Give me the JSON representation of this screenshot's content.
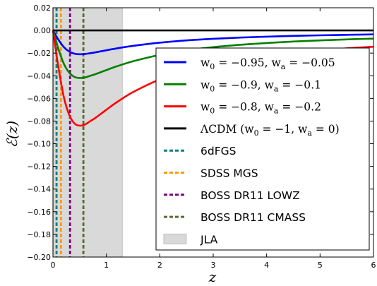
{
  "chart_data": {
    "type": "line",
    "xlabel": "z",
    "ylabel": "ℰ(z)",
    "xlim": [
      0,
      6
    ],
    "ylim": [
      -0.2,
      0.02
    ],
    "xticks": [
      0,
      1,
      2,
      3,
      4,
      5,
      6
    ],
    "xtick_labels": [
      "0",
      "1",
      "2",
      "3",
      "4",
      "5",
      "6"
    ],
    "yticks": [
      0.02,
      0.0,
      -0.02,
      -0.04,
      -0.06,
      -0.08,
      -0.1,
      -0.12,
      -0.14,
      -0.16,
      -0.18,
      -0.2
    ],
    "ytick_labels": [
      "0.02",
      "0.00",
      "−0.02",
      "−0.04",
      "−0.06",
      "−0.08",
      "−0.10",
      "−0.12",
      "−0.14",
      "−0.16",
      "−0.18",
      "−0.20"
    ],
    "grid": false,
    "legend_position": "right",
    "series": [
      {
        "key": "s1",
        "name_parts": [
          "w",
          "0",
          " = −0.95,  w",
          "a",
          " = −0.05"
        ],
        "color": "#0000ff",
        "x": [
          0,
          0.05,
          0.1,
          0.2,
          0.3,
          0.4,
          0.5,
          0.6,
          0.7,
          0.8,
          1.0,
          1.2,
          1.5,
          2.0,
          2.5,
          3.0,
          3.5,
          4.0,
          4.5,
          5.0,
          5.5,
          6.0
        ],
        "y": [
          0,
          -0.004,
          -0.008,
          -0.0145,
          -0.0185,
          -0.0205,
          -0.021,
          -0.0208,
          -0.0201,
          -0.0193,
          -0.0175,
          -0.0158,
          -0.0136,
          -0.0108,
          -0.0088,
          -0.0074,
          -0.0063,
          -0.0055,
          -0.0048,
          -0.0043,
          -0.0039,
          -0.0035
        ]
      },
      {
        "key": "s2",
        "name_parts": [
          "w",
          "0",
          " = −0.9,  w",
          "a",
          " = −0.1"
        ],
        "color": "#008000",
        "x": [
          0,
          0.05,
          0.1,
          0.2,
          0.3,
          0.4,
          0.5,
          0.6,
          0.7,
          0.8,
          1.0,
          1.2,
          1.5,
          2.0,
          2.5,
          3.0,
          3.5,
          4.0,
          4.5,
          5.0,
          5.5,
          6.0
        ],
        "y": [
          0,
          -0.008,
          -0.016,
          -0.029,
          -0.037,
          -0.041,
          -0.042,
          -0.0415,
          -0.04,
          -0.0385,
          -0.035,
          -0.0316,
          -0.0272,
          -0.0216,
          -0.0176,
          -0.0148,
          -0.0127,
          -0.0111,
          -0.0098,
          -0.0088,
          -0.0079,
          -0.0072
        ]
      },
      {
        "key": "s3",
        "name_parts": [
          "w",
          "0",
          " = −0.8,  w",
          "a",
          " = −0.2"
        ],
        "color": "#ff0000",
        "x": [
          0,
          0.05,
          0.1,
          0.2,
          0.3,
          0.4,
          0.5,
          0.6,
          0.7,
          0.8,
          1.0,
          1.2,
          1.5,
          2.0,
          2.5,
          3.0,
          3.5,
          4.0,
          4.5,
          5.0,
          5.5,
          6.0
        ],
        "y": [
          0,
          -0.016,
          -0.032,
          -0.058,
          -0.074,
          -0.082,
          -0.084,
          -0.083,
          -0.08,
          -0.077,
          -0.07,
          -0.0632,
          -0.0544,
          -0.0432,
          -0.0352,
          -0.0296,
          -0.0254,
          -0.0222,
          -0.0196,
          -0.0176,
          -0.0158,
          -0.0144
        ]
      },
      {
        "key": "s4",
        "name_parts": [
          "ΛCDM (w",
          "0",
          " = −1,  w",
          "a",
          " = 0)"
        ],
        "color": "#000000",
        "x": [
          0,
          6
        ],
        "y": [
          0,
          0
        ]
      }
    ],
    "vlines": [
      {
        "name": "6dFGS",
        "x": 0.067,
        "color": "#008080"
      },
      {
        "name": "SDSS MGS",
        "x": 0.15,
        "color": "#ff9900"
      },
      {
        "name": "BOSS DR11 LOWZ",
        "x": 0.32,
        "color": "#800080"
      },
      {
        "name": "BOSS DR11 CMASS",
        "x": 0.57,
        "color": "#556b2f"
      }
    ],
    "shaded_region": {
      "name": "JLA",
      "x": [
        0.01,
        1.3
      ],
      "color": "#d9d9d9"
    }
  }
}
